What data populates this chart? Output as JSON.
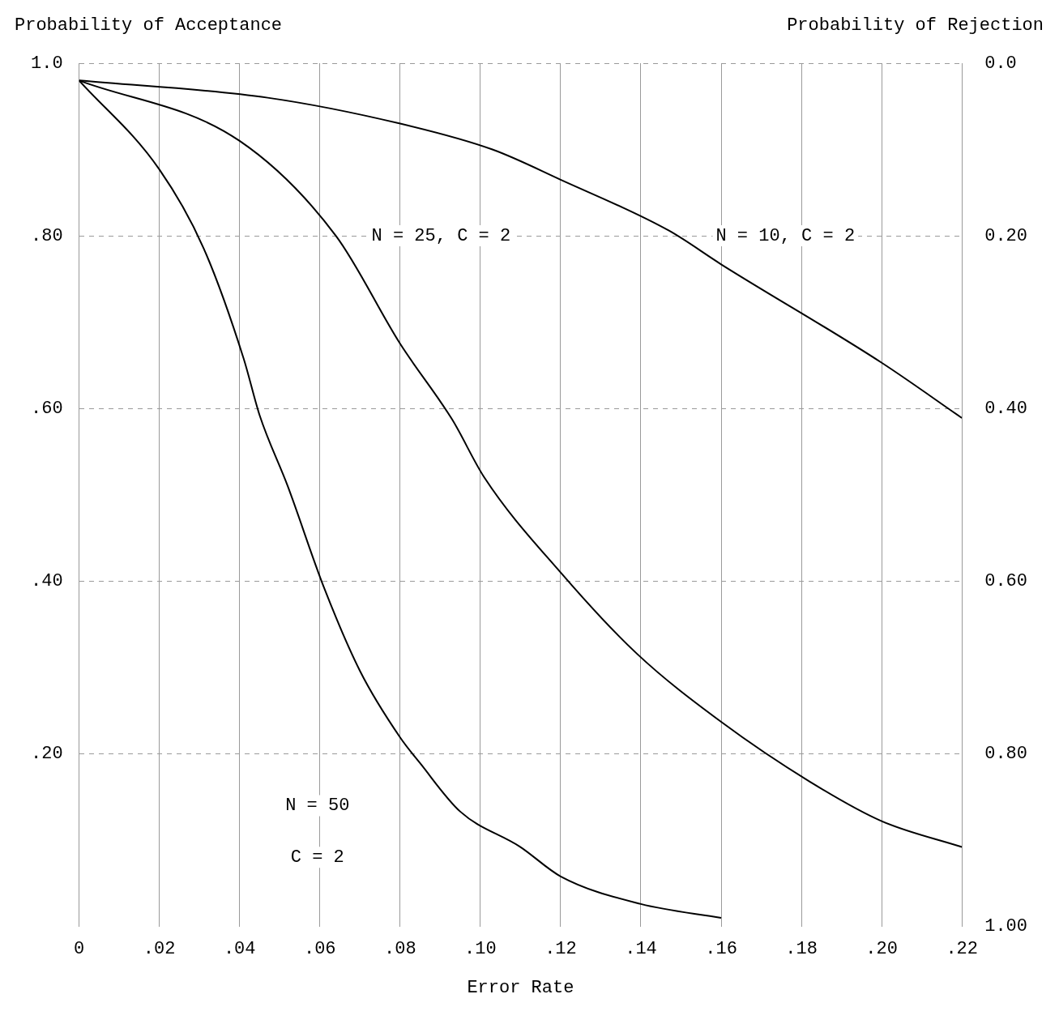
{
  "chart_data": {
    "type": "line",
    "xlabel": "Error Rate",
    "ylabel": "Probability of Acceptance",
    "y2label": "Probability of Rejection",
    "xlim": [
      0,
      0.22
    ],
    "xticks": [
      0,
      {
        "value": 0.02,
        "label": ".02"
      },
      {
        "value": 0.04,
        "label": ".04"
      },
      {
        "value": 0.06,
        "label": ".06"
      },
      {
        "value": 0.08,
        "label": ".08"
      },
      {
        "value": 0.1,
        "label": ".10"
      },
      {
        "value": 0.12,
        "label": ".12"
      },
      {
        "value": 0.14,
        "label": ".14"
      },
      {
        "value": 0.16,
        "label": ".16"
      },
      {
        "value": 0.18,
        "label": ".18"
      },
      {
        "value": 0.2,
        "label": ".20"
      },
      {
        "value": 0.22,
        "label": ".22"
      }
    ],
    "ylim": [
      0,
      1.0
    ],
    "yticks": [
      {
        "value": 0.2,
        "label": ".20"
      },
      {
        "value": 0.4,
        "label": ".40"
      },
      {
        "value": 0.6,
        "label": ".60"
      },
      {
        "value": 0.8,
        "label": ".80"
      },
      {
        "value": 1.0,
        "label": "1.0"
      }
    ],
    "y2lim": [
      1.0,
      0
    ],
    "y2ticks": [
      {
        "value": 0,
        "label": "0.0"
      },
      {
        "value": 0.2,
        "label": "0.20"
      },
      {
        "value": 0.4,
        "label": "0.40"
      },
      {
        "value": 0.6,
        "label": "0.60"
      },
      {
        "value": 0.8,
        "label": "0.80"
      },
      {
        "value": 1.0,
        "label": "1.00"
      }
    ],
    "grid": true,
    "series": [
      {
        "color": "#000000",
        "x": [
          0,
          0.047,
          0.08,
          0.103,
          0.12,
          0.147,
          0.16,
          0.2,
          0.22
        ],
        "values": [
          0.98,
          0.96,
          0.93,
          0.9,
          0.865,
          0.806,
          0.767,
          0.653,
          0.589
        ]
      },
      {
        "color": "#000000",
        "x": [
          0,
          0.04,
          0.064,
          0.08,
          0.093,
          0.101,
          0.12,
          0.139,
          0.16,
          0.182,
          0.2,
          0.22
        ],
        "values": [
          0.98,
          0.91,
          0.8,
          0.675,
          0.587,
          0.52,
          0.41,
          0.316,
          0.237,
          0.168,
          0.122,
          0.092
        ]
      },
      {
        "color": "#000000",
        "x": [
          0,
          0.02,
          0.031,
          0.041,
          0.045,
          0.052,
          0.061,
          0.07,
          0.08,
          0.085,
          0.095,
          0.11,
          0.12,
          0.14,
          0.16
        ],
        "values": [
          0.98,
          0.877,
          0.786,
          0.658,
          0.592,
          0.51,
          0.393,
          0.296,
          0.219,
          0.189,
          0.133,
          0.092,
          0.058,
          0.026,
          0.01
        ]
      }
    ],
    "annotations": [
      "N = 25, C = 2",
      "N = 10, C = 2",
      "N = 50",
      "C = 2"
    ]
  }
}
